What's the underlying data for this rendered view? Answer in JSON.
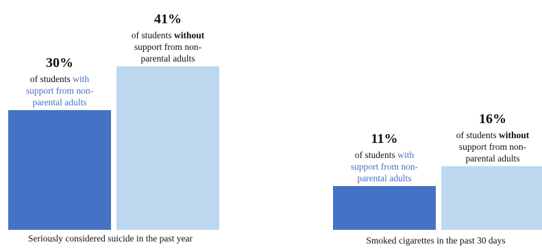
{
  "chart_data": {
    "type": "bar",
    "categories": [
      "Seriously considered suicide in the past year",
      "Smoked cigarettes in the past 30 days"
    ],
    "ylim": [
      0,
      50
    ],
    "groups": [
      {
        "category": "Seriously considered suicide in the past year",
        "bars": [
          {
            "value": 30,
            "value_label": "30%",
            "color": "#4472c4",
            "label_prefix": "of students ",
            "label_highlight": "with",
            "label_rest": " support from non-parental adults",
            "line1": "of students ",
            "line1_hl": "with",
            "line2": "support from non-",
            "line3": "parental adults",
            "highlight": "with"
          },
          {
            "value": 41,
            "value_label": "41%",
            "color": "#bdd7ee",
            "line1": "of students ",
            "line1_hl": "without",
            "line2": "support from non-",
            "line3": "parental adults",
            "highlight": "without"
          }
        ]
      },
      {
        "category": "Smoked cigarettes in the past 30 days",
        "bars": [
          {
            "value": 11,
            "value_label": "11%",
            "color": "#4472c4",
            "line1": "of students ",
            "line1_hl": "with",
            "line2": "support from non-",
            "line3": "parental adults",
            "highlight": "with"
          },
          {
            "value": 16,
            "value_label": "16%",
            "color": "#bdd7ee",
            "line1": "of students ",
            "line1_hl": "without",
            "line2": "support from non-",
            "line3": "parental adults",
            "highlight": "without"
          }
        ]
      }
    ]
  }
}
